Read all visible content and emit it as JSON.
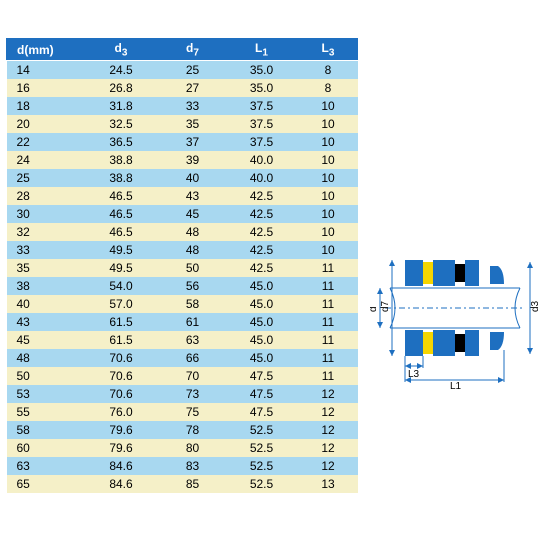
{
  "table": {
    "columns": [
      "d(mm)",
      "d3",
      "d7",
      "L1",
      "L3"
    ],
    "col_classes": [
      "col0",
      "col1",
      "col2",
      "col3",
      "col4"
    ],
    "band_colors": {
      "b": "#a8d8f0",
      "y": "#f5f0c8"
    },
    "header_bg": "#1e6fc0",
    "rows": [
      {
        "band": "b",
        "cells": [
          "14",
          "24.5",
          "25",
          "35.0",
          "8"
        ]
      },
      {
        "band": "y",
        "cells": [
          "16",
          "26.8",
          "27",
          "35.0",
          "8"
        ]
      },
      {
        "band": "b",
        "cells": [
          "18",
          "31.8",
          "33",
          "37.5",
          "10"
        ]
      },
      {
        "band": "y",
        "cells": [
          "20",
          "32.5",
          "35",
          "37.5",
          "10"
        ]
      },
      {
        "band": "b",
        "cells": [
          "22",
          "36.5",
          "37",
          "37.5",
          "10"
        ]
      },
      {
        "band": "y",
        "cells": [
          "24",
          "38.8",
          "39",
          "40.0",
          "10"
        ]
      },
      {
        "band": "b",
        "cells": [
          "25",
          "38.8",
          "40",
          "40.0",
          "10"
        ]
      },
      {
        "band": "y",
        "cells": [
          "28",
          "46.5",
          "43",
          "42.5",
          "10"
        ]
      },
      {
        "band": "b",
        "cells": [
          "30",
          "46.5",
          "45",
          "42.5",
          "10"
        ]
      },
      {
        "band": "y",
        "cells": [
          "32",
          "46.5",
          "48",
          "42.5",
          "10"
        ]
      },
      {
        "band": "b",
        "cells": [
          "33",
          "49.5",
          "48",
          "42.5",
          "10"
        ]
      },
      {
        "band": "y",
        "cells": [
          "35",
          "49.5",
          "50",
          "42.5",
          "11"
        ]
      },
      {
        "band": "b",
        "cells": [
          "38",
          "54.0",
          "56",
          "45.0",
          "11"
        ]
      },
      {
        "band": "y",
        "cells": [
          "40",
          "57.0",
          "58",
          "45.0",
          "11"
        ]
      },
      {
        "band": "b",
        "cells": [
          "43",
          "61.5",
          "61",
          "45.0",
          "11"
        ]
      },
      {
        "band": "y",
        "cells": [
          "45",
          "61.5",
          "63",
          "45.0",
          "11"
        ]
      },
      {
        "band": "b",
        "cells": [
          "48",
          "70.6",
          "66",
          "45.0",
          "11"
        ]
      },
      {
        "band": "y",
        "cells": [
          "50",
          "70.6",
          "70",
          "47.5",
          "11"
        ]
      },
      {
        "band": "b",
        "cells": [
          "53",
          "70.6",
          "73",
          "47.5",
          "12"
        ]
      },
      {
        "band": "y",
        "cells": [
          "55",
          "76.0",
          "75",
          "47.5",
          "12"
        ]
      },
      {
        "band": "b",
        "cells": [
          "58",
          "79.6",
          "78",
          "52.5",
          "12"
        ]
      },
      {
        "band": "y",
        "cells": [
          "60",
          "79.6",
          "80",
          "52.5",
          "12"
        ]
      },
      {
        "band": "b",
        "cells": [
          "63",
          "84.6",
          "83",
          "52.5",
          "12"
        ]
      },
      {
        "band": "y",
        "cells": [
          "65",
          "84.6",
          "85",
          "52.5",
          "13"
        ]
      }
    ]
  },
  "diagram": {
    "labels": {
      "d": "d",
      "d7": "d7",
      "d3": "d3",
      "L1": "L1",
      "L3": "L3"
    },
    "colors": {
      "blue": "#1e6fc0",
      "yellow": "#f5d500",
      "black": "#000000"
    }
  }
}
